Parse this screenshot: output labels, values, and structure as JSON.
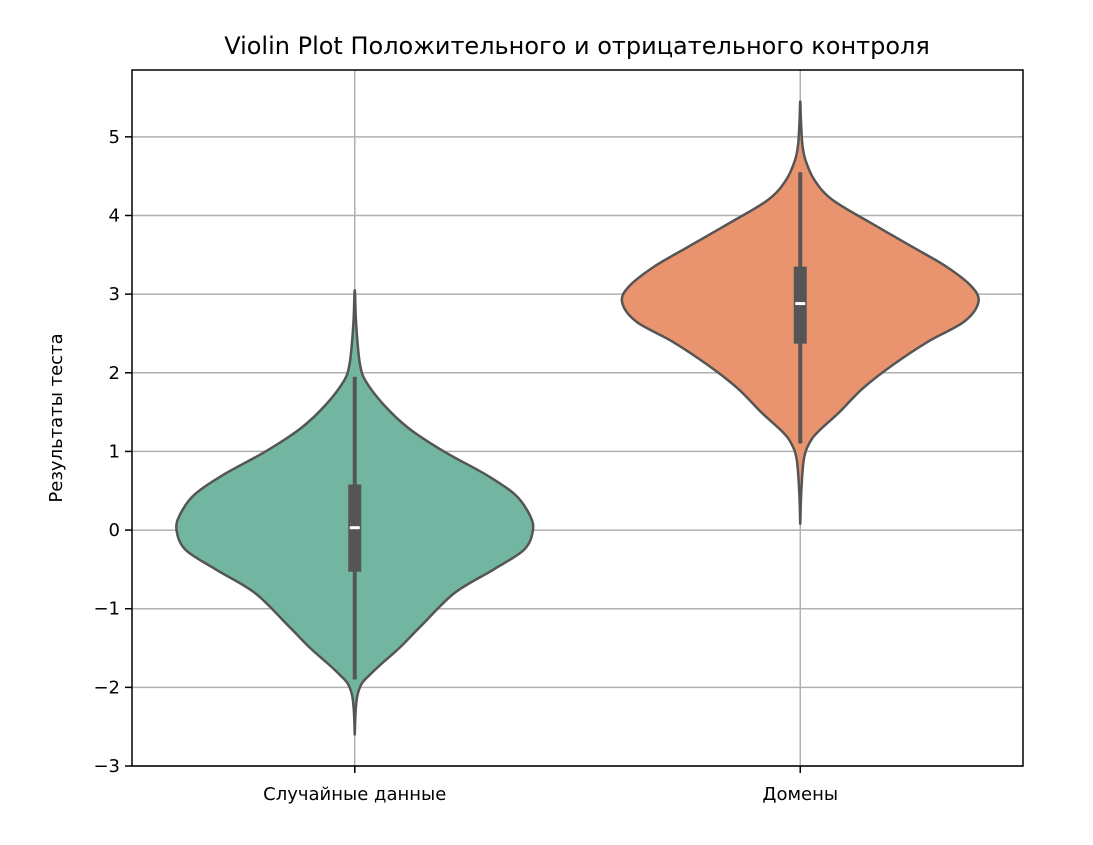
{
  "chart_data": {
    "type": "violin",
    "title": "Violin Plot Положительного и отрицательного контроля",
    "xlabel": "",
    "ylabel": "Результаты теста",
    "ylim": [
      -3,
      5.85
    ],
    "yticks": [
      -3,
      -2,
      -1,
      0,
      1,
      2,
      3,
      4,
      5
    ],
    "ytick_labels": [
      "−3",
      "−2",
      "−1",
      "0",
      "1",
      "2",
      "3",
      "4",
      "5"
    ],
    "grid": true,
    "categories": [
      "Случайные данные",
      "Домены"
    ],
    "series": [
      {
        "category": "Случайные данные",
        "color": "#72b6a2",
        "min": -2.6,
        "max": 3.05,
        "q1": -0.53,
        "median": 0.03,
        "q3": 0.58,
        "whisker_low": -1.9,
        "whisker_high": 1.95,
        "density_profile": [
          [
            -2.6,
            0.0
          ],
          [
            -2.3,
            0.005
          ],
          [
            -2.1,
            0.015
          ],
          [
            -1.95,
            0.04
          ],
          [
            -1.85,
            0.08
          ],
          [
            -1.7,
            0.15
          ],
          [
            -1.5,
            0.25
          ],
          [
            -1.2,
            0.38
          ],
          [
            -0.8,
            0.56
          ],
          [
            -0.5,
            0.78
          ],
          [
            -0.25,
            0.95
          ],
          [
            0.0,
            1.0
          ],
          [
            0.2,
            0.98
          ],
          [
            0.45,
            0.9
          ],
          [
            0.7,
            0.74
          ],
          [
            1.0,
            0.5
          ],
          [
            1.3,
            0.3
          ],
          [
            1.6,
            0.16
          ],
          [
            1.9,
            0.06
          ],
          [
            2.1,
            0.03
          ],
          [
            2.4,
            0.015
          ],
          [
            2.7,
            0.006
          ],
          [
            3.05,
            0.0
          ]
        ]
      },
      {
        "category": "Домены",
        "color": "#e9946f",
        "min": 0.08,
        "max": 5.45,
        "q1": 2.37,
        "median": 2.88,
        "q3": 3.35,
        "whisker_low": 1.1,
        "whisker_high": 4.55,
        "density_profile": [
          [
            0.08,
            0.0
          ],
          [
            0.5,
            0.006
          ],
          [
            0.9,
            0.02
          ],
          [
            1.1,
            0.05
          ],
          [
            1.25,
            0.1
          ],
          [
            1.5,
            0.22
          ],
          [
            1.8,
            0.35
          ],
          [
            2.1,
            0.52
          ],
          [
            2.4,
            0.72
          ],
          [
            2.65,
            0.92
          ],
          [
            2.9,
            1.0
          ],
          [
            3.1,
            0.96
          ],
          [
            3.35,
            0.82
          ],
          [
            3.6,
            0.63
          ],
          [
            3.9,
            0.4
          ],
          [
            4.2,
            0.18
          ],
          [
            4.45,
            0.08
          ],
          [
            4.7,
            0.03
          ],
          [
            4.9,
            0.012
          ],
          [
            5.2,
            0.004
          ],
          [
            5.45,
            0.0
          ]
        ]
      }
    ]
  }
}
